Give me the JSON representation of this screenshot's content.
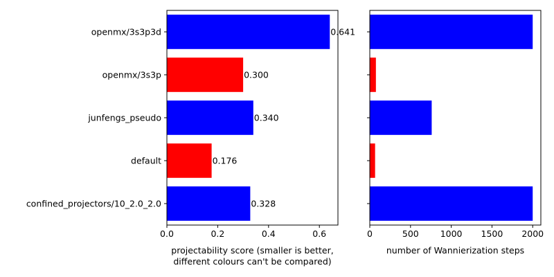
{
  "chart_data": [
    {
      "type": "bar",
      "orientation": "horizontal",
      "categories": [
        "openmx/3s3p3d",
        "openmx/3s3p",
        "junfengs_pseudo",
        "default",
        "confined_projectors/10_2.0_2.0"
      ],
      "values": [
        0.641,
        0.3,
        0.34,
        0.176,
        0.328
      ],
      "value_labels": [
        "0.641",
        "0.300",
        "0.340",
        "0.176",
        "0.328"
      ],
      "bar_colors": [
        "#0000ff",
        "#ff0000",
        "#0000ff",
        "#ff0000",
        "#0000ff"
      ],
      "title": "",
      "xlabel": [
        "projectability score (smaller is better,",
        "different colours can't be compared)"
      ],
      "ylabel": "",
      "xlim": [
        0,
        0.673
      ],
      "xticks": [
        0.0,
        0.2,
        0.4,
        0.6
      ],
      "xtick_labels": [
        "0.0",
        "0.2",
        "0.4",
        "0.6"
      ],
      "grid": false
    },
    {
      "type": "bar",
      "orientation": "horizontal",
      "categories": [
        "openmx/3s3p3d",
        "openmx/3s3p",
        "junfengs_pseudo",
        "default",
        "confined_projectors/10_2.0_2.0"
      ],
      "values": [
        2000,
        75,
        760,
        65,
        2000
      ],
      "bar_colors": [
        "#0000ff",
        "#ff0000",
        "#0000ff",
        "#ff0000",
        "#0000ff"
      ],
      "title": "",
      "xlabel": [
        "number of Wannierization steps"
      ],
      "ylabel": "",
      "xlim": [
        0,
        2100
      ],
      "xticks": [
        0,
        500,
        1000,
        1500,
        2000
      ],
      "xtick_labels": [
        "0",
        "500",
        "1000",
        "1500",
        "2000"
      ],
      "grid": false
    }
  ]
}
